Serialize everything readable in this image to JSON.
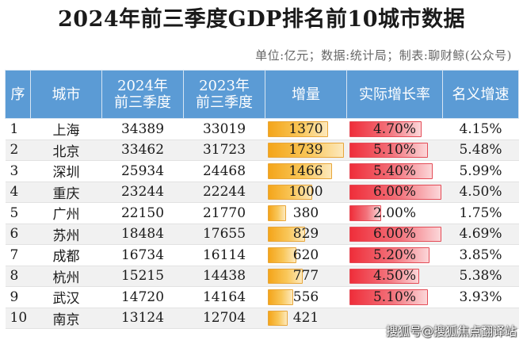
{
  "title": "2024年前三季度GDP排名前10城市数据",
  "subtitle": "单位:亿元；数据:统计局；制表:聊财鲸(公众号)",
  "headers": [
    "序",
    "城市",
    "2024年前三季度",
    "2023年前三季度",
    "增量",
    "实际增长率",
    "名义增速"
  ],
  "rows": [
    {
      "rank": "1",
      "city": "上海",
      "y2024": "34389",
      "y2023": "33019",
      "increase": "1370",
      "real_growth": "4.70%",
      "nominal_growth": "4.15%",
      "increase_value": 1370,
      "real_growth_value": 4.7
    },
    {
      "rank": "2",
      "city": "北京",
      "y2024": "33462",
      "y2023": "31723",
      "increase": "1739",
      "real_growth": "5.10%",
      "nominal_growth": "5.48%",
      "increase_value": 1739,
      "real_growth_value": 5.1
    },
    {
      "rank": "3",
      "city": "深圳",
      "y2024": "25934",
      "y2023": "24468",
      "increase": "1466",
      "real_growth": "5.40%",
      "nominal_growth": "5.99%",
      "increase_value": 1466,
      "real_growth_value": 5.4
    },
    {
      "rank": "4",
      "city": "重庆",
      "y2024": "23244",
      "y2023": "22244",
      "increase": "1000",
      "real_growth": "6.00%",
      "nominal_growth": "4.50%",
      "increase_value": 1000,
      "real_growth_value": 6.0
    },
    {
      "rank": "5",
      "city": "广州",
      "y2024": "22150",
      "y2023": "21770",
      "increase": "380",
      "real_growth": "2.00%",
      "nominal_growth": "1.75%",
      "increase_value": 380,
      "real_growth_value": 2.0
    },
    {
      "rank": "6",
      "city": "苏州",
      "y2024": "18484",
      "y2023": "17655",
      "increase": "829",
      "real_growth": "6.00%",
      "nominal_growth": "4.69%",
      "increase_value": 829,
      "real_growth_value": 6.0
    },
    {
      "rank": "7",
      "city": "成都",
      "y2024": "16734",
      "y2023": "16114",
      "increase": "620",
      "real_growth": "5.20%",
      "nominal_growth": "3.85%",
      "increase_value": 620,
      "real_growth_value": 5.2
    },
    {
      "rank": "8",
      "city": "杭州",
      "y2024": "15215",
      "y2023": "14438",
      "increase": "777",
      "real_growth": "4.50%",
      "nominal_growth": "5.38%",
      "increase_value": 777,
      "real_growth_value": 4.5
    },
    {
      "rank": "9",
      "city": "武汉",
      "y2024": "14720",
      "y2023": "14164",
      "increase": "556",
      "real_growth": "5.10%",
      "nominal_growth": "3.93%",
      "increase_value": 556,
      "real_growth_value": 5.1
    },
    {
      "rank": "10",
      "city": "南京",
      "y2024": "13124",
      "y2023": "12704",
      "increase": "421",
      "real_growth": "",
      "nominal_growth": "",
      "increase_value": 421,
      "real_growth_value": null
    }
  ],
  "increase_bar_max": 1739,
  "growth_bar_max": 6.0,
  "colors": {
    "header_bg": "#5b9bd5",
    "increase_bar": "#f4a51a",
    "growth_bar": "#ef2e3a"
  },
  "watermark": "搜狐号@搜狐焦点翻译站"
}
